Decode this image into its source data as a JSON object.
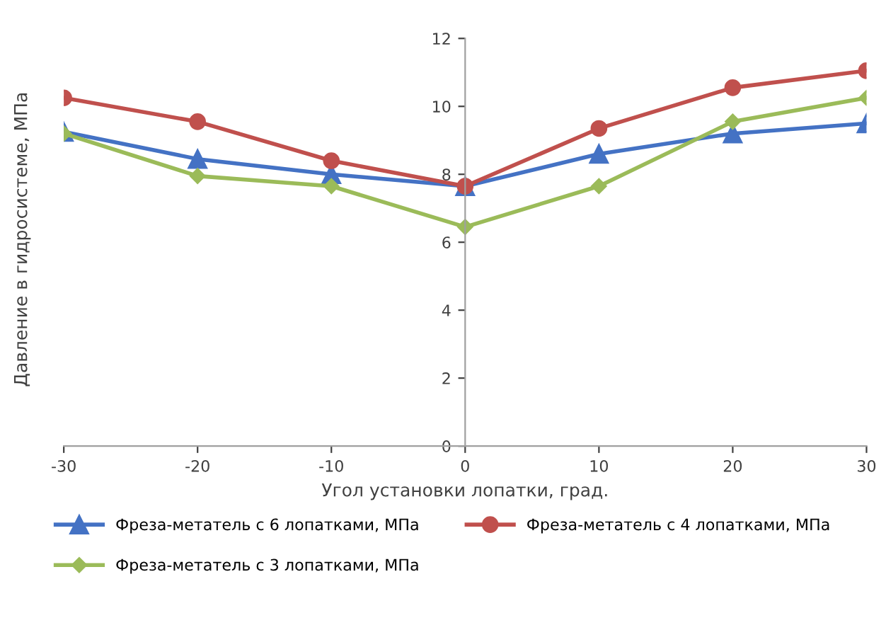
{
  "chart_data": {
    "type": "line",
    "xlabel": "Угол установки лопатки, град.",
    "ylabel": "Давление в гидросистеме, МПа",
    "x": [
      -30,
      -20,
      -10,
      0,
      10,
      20,
      30
    ],
    "series": [
      {
        "name": "Фреза-метатель с 6 лопатками, МПа",
        "color": "#4472c4",
        "marker": "triangle",
        "values": [
          9.25,
          8.45,
          8.0,
          7.65,
          8.6,
          9.2,
          9.5
        ]
      },
      {
        "name": "Фреза-метатель с 4 лопатками, МПа",
        "color": "#c0504d",
        "marker": "circle",
        "values": [
          10.25,
          9.55,
          8.4,
          7.65,
          9.35,
          10.55,
          11.05
        ]
      },
      {
        "name": "Фреза-метатель с 3 лопатками, МПа",
        "color": "#9bbb59",
        "marker": "diamond",
        "values": [
          9.2,
          7.95,
          7.65,
          6.45,
          7.65,
          9.55,
          10.25
        ]
      }
    ],
    "xlim": [
      -30,
      30
    ],
    "xticks": [
      -30,
      -20,
      -10,
      0,
      10,
      20,
      30
    ],
    "ylim": [
      0,
      12
    ],
    "yticks": [
      0,
      2,
      4,
      6,
      8,
      10,
      12
    ],
    "grid": false,
    "legend": "bottom"
  }
}
